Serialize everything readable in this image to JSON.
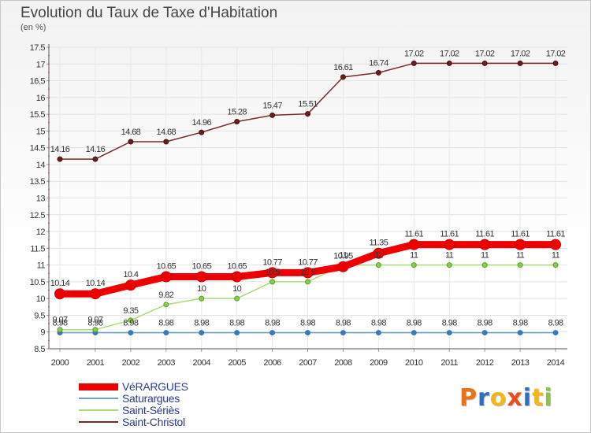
{
  "title": "Evolution du Taux de Taxe d'Habitation",
  "unit": "(en %)",
  "logo": {
    "text": "Proxiti",
    "colors": [
      "#e8741a",
      "#2f6fc0",
      "#f2b81a",
      "#e84d1a",
      "#2f6fc0",
      "#f2b81a",
      "#8cc63f"
    ]
  },
  "chart_data": {
    "type": "line",
    "title": "Evolution du Taux de Taxe d'Habitation",
    "ylabel": "(en %)",
    "xlabel": "",
    "x": [
      2000,
      2001,
      2002,
      2003,
      2004,
      2005,
      2006,
      2007,
      2008,
      2009,
      2010,
      2011,
      2012,
      2013,
      2014
    ],
    "ylim": [
      8.5,
      17.5
    ],
    "yticks": [
      8.5,
      9,
      9.5,
      10,
      10.5,
      11,
      11.5,
      12,
      12.5,
      13,
      13.5,
      14,
      14.5,
      15,
      15.5,
      16,
      16.5,
      17,
      17.5
    ],
    "grid": true,
    "legend_position": "bottom-left",
    "series": [
      {
        "name": "VéRARGUES",
        "color": "#ee0000",
        "values": [
          10.14,
          10.14,
          10.4,
          10.65,
          10.65,
          10.65,
          10.77,
          10.77,
          10.95,
          11.35,
          11.61,
          11.61,
          11.61,
          11.61,
          11.61
        ]
      },
      {
        "name": "Saturargues",
        "color": "#6fa0d0",
        "values": [
          8.98,
          8.98,
          8.98,
          8.98,
          8.98,
          8.98,
          8.98,
          8.98,
          8.98,
          8.98,
          8.98,
          8.98,
          8.98,
          8.98,
          8.98
        ]
      },
      {
        "name": "Saint-Sériès",
        "color": "#a8dc78",
        "values": [
          9.07,
          9.07,
          9.35,
          9.82,
          10,
          10,
          10.5,
          10.5,
          11,
          11,
          11,
          11,
          11,
          11,
          11
        ]
      },
      {
        "name": "Saint-Christol",
        "color": "#7a2a2a",
        "values": [
          14.16,
          14.16,
          14.68,
          14.68,
          14.96,
          15.28,
          15.47,
          15.51,
          16.61,
          16.74,
          17.02,
          17.02,
          17.02,
          17.02,
          17.02
        ]
      }
    ]
  }
}
